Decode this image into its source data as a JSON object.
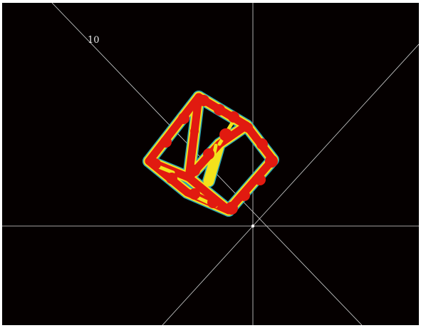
{
  "scale_label": "10",
  "colors": {
    "background": "#050000",
    "axis": "#d8d8d8",
    "cube_core": "#e11a10",
    "cube_halo_yellow": "#f3e21c",
    "cube_halo_cyan": "#2fb7c9"
  }
}
